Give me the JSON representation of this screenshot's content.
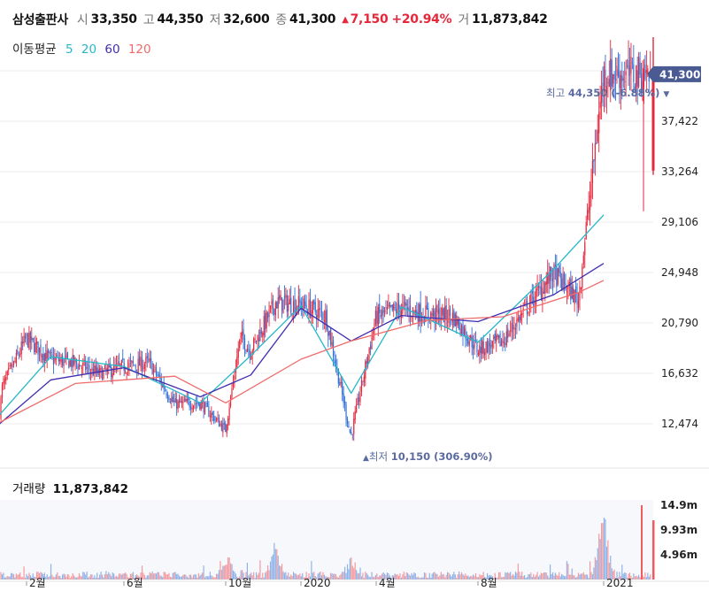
{
  "header": {
    "name": "삼성출판사",
    "open_label": "시",
    "open": "33,350",
    "high_label": "고",
    "high": "44,350",
    "low_label": "저",
    "low": "32,600",
    "close_label": "종",
    "close": "41,300",
    "change_arrow": "▲",
    "change": "7,150",
    "change_pct": "+20.94%",
    "volume_label": "거",
    "volume": "11,873,842"
  },
  "moving_average": {
    "title": "이동평균",
    "periods": [
      {
        "label": "5",
        "color": "#25b8c9"
      },
      {
        "label": "20",
        "color": "#25b8c9"
      },
      {
        "label": "60",
        "color": "#3f2fb0"
      },
      {
        "label": "120",
        "color": "#ef6a6a"
      }
    ]
  },
  "price_panel": {
    "current_price_tag": "41,300",
    "max_annotation": {
      "label": "최고",
      "value": "44,350 (-6.88%)",
      "arrow": "▼"
    },
    "min_annotation": {
      "label": "최저",
      "value": "10,150 (306.90%)",
      "arrow": "▲"
    },
    "y_ticks": [
      "37,422",
      "33,264",
      "29,106",
      "24,948",
      "20,790",
      "16,632",
      "12,474"
    ]
  },
  "volume_panel": {
    "label": "거래량",
    "value": "11,873,842",
    "y_ticks": [
      "14.9m",
      "9.93m",
      "4.96m"
    ]
  },
  "x_ticks": [
    "2월",
    "6월",
    "10월",
    "2020",
    "4월",
    "8월",
    "2021"
  ],
  "colors": {
    "up": "#e5283c",
    "down": "#2f6fd6",
    "tag_bg": "#4a5a92",
    "grid": "#eeeeee",
    "annotation": "#5b6aa0"
  },
  "chart_data": {
    "type": "candlestick",
    "period": "2019-01 to 2021-01",
    "y_unit": "KRW",
    "ylim": [
      10150,
      44350
    ],
    "y_ticks": [
      12474,
      16632,
      20790,
      24948,
      29106,
      33264,
      37422
    ],
    "x_ticks": [
      "2월",
      "6월",
      "10월",
      "2020",
      "4월",
      "8월",
      "2021"
    ],
    "price_series": {
      "name": "종가",
      "points": [
        [
          "2019-01",
          12700
        ],
        [
          "2019-02",
          19500
        ],
        [
          "2019-03",
          17800
        ],
        [
          "2019-04",
          17500
        ],
        [
          "2019-05",
          16600
        ],
        [
          "2019-06",
          17200
        ],
        [
          "2019-07",
          17500
        ],
        [
          "2019-08",
          14100
        ],
        [
          "2019-09",
          14200
        ],
        [
          "2019-10",
          12000
        ],
        [
          "2019-10b",
          19700
        ],
        [
          "2019-11",
          18500
        ],
        [
          "2019-12",
          22500
        ],
        [
          "2020-01",
          22300
        ],
        [
          "2020-02",
          21400
        ],
        [
          "2020-03",
          11400
        ],
        [
          "2020-04",
          21300
        ],
        [
          "2020-05",
          22000
        ],
        [
          "2020-06",
          21500
        ],
        [
          "2020-07",
          21400
        ],
        [
          "2020-08",
          18600
        ],
        [
          "2020-09",
          19300
        ],
        [
          "2020-10",
          22200
        ],
        [
          "2020-11",
          24900
        ],
        [
          "2020-12",
          22700
        ],
        [
          "2021-01",
          41300
        ]
      ]
    },
    "ma_series": [
      {
        "name": "20",
        "points": [
          [
            "2019-01",
            12600
          ],
          [
            "2019-03",
            18000
          ],
          [
            "2019-06",
            17200
          ],
          [
            "2019-09",
            14200
          ],
          [
            "2019-11",
            18100
          ],
          [
            "2020-01",
            22200
          ],
          [
            "2020-03",
            15000
          ],
          [
            "2020-05",
            22100
          ],
          [
            "2020-08",
            19200
          ],
          [
            "2020-11",
            25200
          ],
          [
            "2021-01",
            29700
          ]
        ]
      },
      {
        "name": "60",
        "points": [
          [
            "2019-01",
            12000
          ],
          [
            "2019-03",
            16100
          ],
          [
            "2019-06",
            17100
          ],
          [
            "2019-09",
            14700
          ],
          [
            "2019-11",
            16500
          ],
          [
            "2020-01",
            22000
          ],
          [
            "2020-03",
            19300
          ],
          [
            "2020-05",
            21400
          ],
          [
            "2020-08",
            20900
          ],
          [
            "2020-11",
            23100
          ],
          [
            "2021-01",
            25700
          ]
        ]
      },
      {
        "name": "120",
        "points": [
          [
            "2019-01",
            12300
          ],
          [
            "2019-04",
            15800
          ],
          [
            "2019-08",
            16400
          ],
          [
            "2019-10",
            14200
          ],
          [
            "2020-01",
            17800
          ],
          [
            "2020-03",
            19300
          ],
          [
            "2020-06",
            21000
          ],
          [
            "2020-09",
            21300
          ],
          [
            "2020-12",
            23300
          ],
          [
            "2021-01",
            24300
          ]
        ]
      }
    ],
    "volume": {
      "unit": "shares",
      "ylim": [
        0,
        17000000
      ],
      "y_ticks": [
        4960000,
        9930000,
        14900000
      ],
      "peaks": [
        [
          "2019-10",
          7000000
        ],
        [
          "2019-12",
          8600000
        ],
        [
          "2020-03",
          5200000
        ],
        [
          "2021-01",
          14900000
        ]
      ]
    }
  }
}
